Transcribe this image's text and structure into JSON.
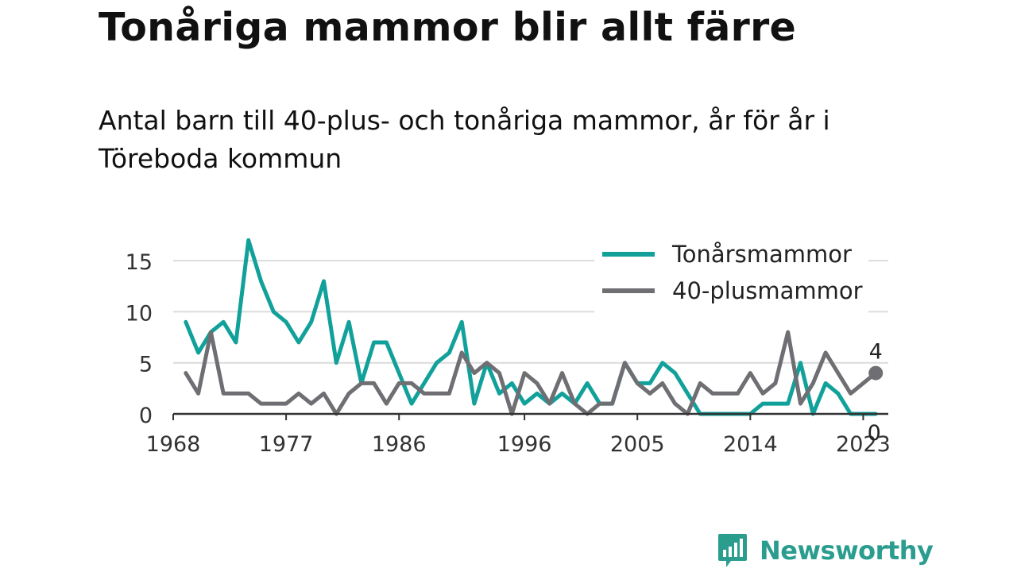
{
  "header": {
    "title": "Tonåriga mammor blir allt färre",
    "subtitle": "Antal barn till 40-plus- och tonåriga mammor, år för år i Töreboda kommun"
  },
  "brand": {
    "name": "Newsworthy",
    "icon": "newsworthy-logo-icon",
    "color": "#2a9d8f"
  },
  "chart_data": {
    "type": "line",
    "title": "",
    "xlabel": "",
    "ylabel": "",
    "x": [
      1969,
      1970,
      1971,
      1972,
      1973,
      1974,
      1975,
      1976,
      1977,
      1978,
      1979,
      1980,
      1981,
      1982,
      1983,
      1984,
      1985,
      1986,
      1987,
      1988,
      1989,
      1990,
      1991,
      1992,
      1993,
      1994,
      1995,
      1996,
      1997,
      1998,
      1999,
      2000,
      2001,
      2002,
      2003,
      2004,
      2005,
      2006,
      2007,
      2008,
      2009,
      2010,
      2011,
      2012,
      2013,
      2014,
      2015,
      2016,
      2017,
      2018,
      2019,
      2020,
      2021,
      2022,
      2023,
      2024
    ],
    "x_ticks": [
      1968,
      1977,
      1986,
      1996,
      2005,
      2014,
      2023
    ],
    "y_ticks": [
      0,
      5,
      10,
      15
    ],
    "xlim": [
      1968,
      2025
    ],
    "ylim": [
      0,
      17.5
    ],
    "grid": "horizontal",
    "legend_position": "top-right",
    "series": [
      {
        "name": "Tonårsmammor",
        "color": "#12a19a",
        "values": [
          9,
          6,
          8,
          9,
          7,
          17,
          13,
          10,
          9,
          7,
          9,
          13,
          5,
          9,
          3,
          7,
          7,
          4,
          1,
          3,
          5,
          6,
          9,
          1,
          5,
          2,
          3,
          1,
          2,
          1,
          2,
          1,
          3,
          1,
          1,
          5,
          3,
          3,
          5,
          4,
          2,
          0,
          0,
          0,
          0,
          0,
          1,
          1,
          1,
          5,
          0,
          3,
          2,
          0,
          0,
          0
        ],
        "end_label": "0"
      },
      {
        "name": "40-plusmammor",
        "color": "#6e6e73",
        "values": [
          4,
          2,
          8,
          2,
          2,
          2,
          1,
          1,
          1,
          2,
          1,
          2,
          0,
          2,
          3,
          3,
          1,
          3,
          3,
          2,
          2,
          2,
          6,
          4,
          5,
          4,
          0,
          4,
          3,
          1,
          4,
          1,
          0,
          1,
          1,
          5,
          3,
          2,
          3,
          1,
          0,
          3,
          2,
          2,
          2,
          4,
          2,
          3,
          8,
          1,
          3,
          6,
          4,
          2,
          3,
          4
        ],
        "end_label": "4"
      }
    ]
  }
}
